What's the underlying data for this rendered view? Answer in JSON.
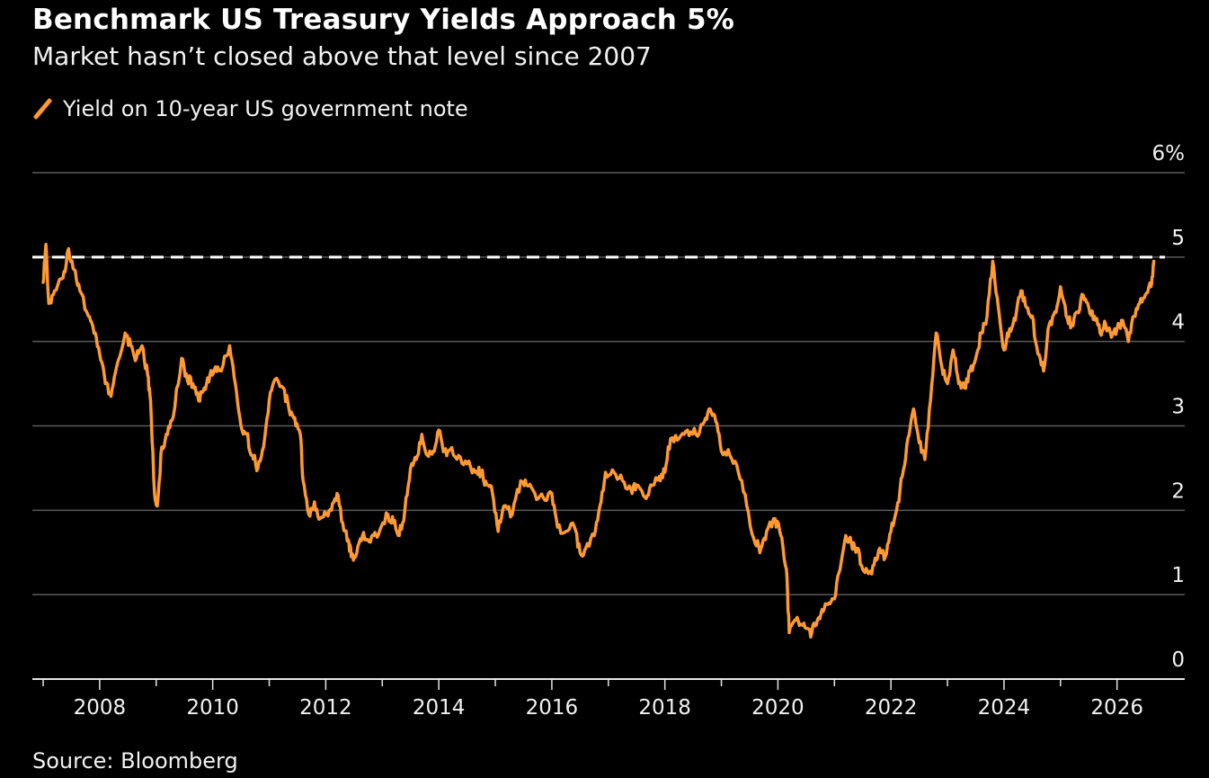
{
  "chart_data": {
    "type": "line",
    "title": "Benchmark US Treasury Yields Approach 5%",
    "subtitle": "Market hasn’t closed above that level since 2007",
    "source": "Source: Bloomberg",
    "series": [
      {
        "name": "Yield on 10-year US government note",
        "color": "#ff9933",
        "points": [
          [
            2007.0,
            4.7
          ],
          [
            2007.05,
            5.15
          ],
          [
            2007.1,
            4.45
          ],
          [
            2007.2,
            4.6
          ],
          [
            2007.35,
            4.75
          ],
          [
            2007.45,
            5.1
          ],
          [
            2007.55,
            4.85
          ],
          [
            2007.65,
            4.6
          ],
          [
            2007.8,
            4.3
          ],
          [
            2007.9,
            4.1
          ],
          [
            2008.0,
            3.85
          ],
          [
            2008.1,
            3.5
          ],
          [
            2008.2,
            3.35
          ],
          [
            2008.3,
            3.7
          ],
          [
            2008.45,
            4.1
          ],
          [
            2008.55,
            3.95
          ],
          [
            2008.65,
            3.8
          ],
          [
            2008.75,
            3.95
          ],
          [
            2008.85,
            3.6
          ],
          [
            2008.9,
            3.3
          ],
          [
            2008.97,
            2.2
          ],
          [
            2009.02,
            2.05
          ],
          [
            2009.1,
            2.75
          ],
          [
            2009.2,
            2.9
          ],
          [
            2009.3,
            3.1
          ],
          [
            2009.45,
            3.8
          ],
          [
            2009.55,
            3.55
          ],
          [
            2009.65,
            3.5
          ],
          [
            2009.75,
            3.3
          ],
          [
            2009.85,
            3.45
          ],
          [
            2009.95,
            3.6
          ],
          [
            2010.05,
            3.7
          ],
          [
            2010.15,
            3.65
          ],
          [
            2010.3,
            3.95
          ],
          [
            2010.4,
            3.5
          ],
          [
            2010.5,
            3.0
          ],
          [
            2010.6,
            2.9
          ],
          [
            2010.7,
            2.65
          ],
          [
            2010.8,
            2.5
          ],
          [
            2010.9,
            2.75
          ],
          [
            2011.0,
            3.3
          ],
          [
            2011.1,
            3.55
          ],
          [
            2011.25,
            3.45
          ],
          [
            2011.35,
            3.2
          ],
          [
            2011.45,
            3.1
          ],
          [
            2011.55,
            2.9
          ],
          [
            2011.6,
            2.35
          ],
          [
            2011.7,
            1.95
          ],
          [
            2011.8,
            2.1
          ],
          [
            2011.9,
            1.9
          ],
          [
            2012.0,
            1.95
          ],
          [
            2012.1,
            2.0
          ],
          [
            2012.2,
            2.2
          ],
          [
            2012.3,
            1.85
          ],
          [
            2012.4,
            1.65
          ],
          [
            2012.45,
            1.45
          ],
          [
            2012.55,
            1.5
          ],
          [
            2012.65,
            1.7
          ],
          [
            2012.75,
            1.65
          ],
          [
            2012.85,
            1.7
          ],
          [
            2012.95,
            1.75
          ],
          [
            2013.1,
            1.95
          ],
          [
            2013.2,
            1.85
          ],
          [
            2013.3,
            1.7
          ],
          [
            2013.4,
            2.0
          ],
          [
            2013.5,
            2.5
          ],
          [
            2013.6,
            2.6
          ],
          [
            2013.7,
            2.9
          ],
          [
            2013.8,
            2.65
          ],
          [
            2013.9,
            2.7
          ],
          [
            2014.0,
            2.95
          ],
          [
            2014.1,
            2.7
          ],
          [
            2014.2,
            2.72
          ],
          [
            2014.35,
            2.65
          ],
          [
            2014.5,
            2.55
          ],
          [
            2014.65,
            2.45
          ],
          [
            2014.75,
            2.45
          ],
          [
            2014.85,
            2.3
          ],
          [
            2014.95,
            2.2
          ],
          [
            2015.05,
            1.75
          ],
          [
            2015.15,
            2.05
          ],
          [
            2015.3,
            1.95
          ],
          [
            2015.45,
            2.35
          ],
          [
            2015.55,
            2.3
          ],
          [
            2015.7,
            2.2
          ],
          [
            2015.85,
            2.15
          ],
          [
            2016.0,
            2.2
          ],
          [
            2016.1,
            1.8
          ],
          [
            2016.25,
            1.75
          ],
          [
            2016.4,
            1.8
          ],
          [
            2016.5,
            1.5
          ],
          [
            2016.6,
            1.55
          ],
          [
            2016.75,
            1.7
          ],
          [
            2016.85,
            2.05
          ],
          [
            2016.95,
            2.45
          ],
          [
            2017.1,
            2.45
          ],
          [
            2017.25,
            2.35
          ],
          [
            2017.4,
            2.25
          ],
          [
            2017.5,
            2.3
          ],
          [
            2017.65,
            2.15
          ],
          [
            2017.75,
            2.3
          ],
          [
            2017.9,
            2.4
          ],
          [
            2018.0,
            2.45
          ],
          [
            2018.1,
            2.85
          ],
          [
            2018.25,
            2.85
          ],
          [
            2018.4,
            2.95
          ],
          [
            2018.55,
            2.9
          ],
          [
            2018.7,
            3.05
          ],
          [
            2018.8,
            3.2
          ],
          [
            2018.9,
            3.05
          ],
          [
            2019.0,
            2.7
          ],
          [
            2019.15,
            2.65
          ],
          [
            2019.3,
            2.45
          ],
          [
            2019.45,
            2.05
          ],
          [
            2019.6,
            1.6
          ],
          [
            2019.7,
            1.55
          ],
          [
            2019.8,
            1.75
          ],
          [
            2019.95,
            1.9
          ],
          [
            2020.05,
            1.7
          ],
          [
            2020.15,
            1.3
          ],
          [
            2020.2,
            0.55
          ],
          [
            2020.3,
            0.7
          ],
          [
            2020.4,
            0.65
          ],
          [
            2020.5,
            0.6
          ],
          [
            2020.6,
            0.55
          ],
          [
            2020.7,
            0.7
          ],
          [
            2020.8,
            0.8
          ],
          [
            2020.9,
            0.9
          ],
          [
            2021.0,
            0.95
          ],
          [
            2021.1,
            1.3
          ],
          [
            2021.2,
            1.7
          ],
          [
            2021.3,
            1.6
          ],
          [
            2021.4,
            1.55
          ],
          [
            2021.5,
            1.3
          ],
          [
            2021.6,
            1.25
          ],
          [
            2021.7,
            1.35
          ],
          [
            2021.8,
            1.55
          ],
          [
            2021.9,
            1.45
          ],
          [
            2022.0,
            1.75
          ],
          [
            2022.1,
            2.0
          ],
          [
            2022.2,
            2.4
          ],
          [
            2022.3,
            2.85
          ],
          [
            2022.4,
            3.2
          ],
          [
            2022.5,
            2.8
          ],
          [
            2022.6,
            2.6
          ],
          [
            2022.7,
            3.3
          ],
          [
            2022.8,
            4.1
          ],
          [
            2022.9,
            3.7
          ],
          [
            2023.0,
            3.5
          ],
          [
            2023.1,
            3.9
          ],
          [
            2023.2,
            3.5
          ],
          [
            2023.3,
            3.45
          ],
          [
            2023.4,
            3.65
          ],
          [
            2023.5,
            3.8
          ],
          [
            2023.6,
            4.1
          ],
          [
            2023.7,
            4.3
          ],
          [
            2023.8,
            4.95
          ],
          [
            2023.9,
            4.4
          ],
          [
            2024.0,
            3.9
          ],
          [
            2024.1,
            4.15
          ],
          [
            2024.2,
            4.25
          ],
          [
            2024.3,
            4.6
          ],
          [
            2024.4,
            4.4
          ],
          [
            2024.5,
            4.3
          ],
          [
            2024.6,
            3.85
          ],
          [
            2024.7,
            3.65
          ],
          [
            2024.8,
            4.2
          ],
          [
            2024.9,
            4.35
          ],
          [
            2025.0,
            4.65
          ],
          [
            2025.1,
            4.3
          ],
          [
            2025.2,
            4.2
          ],
          [
            2025.3,
            4.35
          ],
          [
            2025.4,
            4.55
          ],
          [
            2025.5,
            4.4
          ],
          [
            2025.6,
            4.3
          ],
          [
            2025.7,
            4.1
          ],
          [
            2025.8,
            4.2
          ],
          [
            2025.9,
            4.05
          ],
          [
            2026.0,
            4.15
          ],
          [
            2026.1,
            4.25
          ],
          [
            2026.2,
            4.0
          ],
          [
            2026.3,
            4.3
          ],
          [
            2026.4,
            4.45
          ],
          [
            2026.5,
            4.55
          ],
          [
            2026.6,
            4.65
          ],
          [
            2026.65,
            4.95
          ]
        ]
      }
    ],
    "reference_line": {
      "value": 5,
      "style": "dashed",
      "color": "#ffffff"
    },
    "x_range": [
      2007.0,
      2026.8
    ],
    "y_range": [
      0,
      6
    ],
    "x_ticks": [
      {
        "value": 2008,
        "label": "2008"
      },
      {
        "value": 2010,
        "label": "2010"
      },
      {
        "value": 2012,
        "label": "2012"
      },
      {
        "value": 2014,
        "label": "2014"
      },
      {
        "value": 2016,
        "label": "2016"
      },
      {
        "value": 2018,
        "label": "2018"
      },
      {
        "value": 2020,
        "label": "2020"
      },
      {
        "value": 2022,
        "label": "2022"
      },
      {
        "value": 2024,
        "label": "2024"
      },
      {
        "value": 2026,
        "label": "2026"
      }
    ],
    "y_ticks": [
      {
        "value": 0,
        "label": "0"
      },
      {
        "value": 1,
        "label": "1"
      },
      {
        "value": 2,
        "label": "2"
      },
      {
        "value": 3,
        "label": "3"
      },
      {
        "value": 4,
        "label": "4"
      },
      {
        "value": 5,
        "label": "5"
      },
      {
        "value": 6,
        "label": "6%"
      }
    ],
    "grid": true,
    "legend_position": "top-left",
    "background": "#000000"
  }
}
